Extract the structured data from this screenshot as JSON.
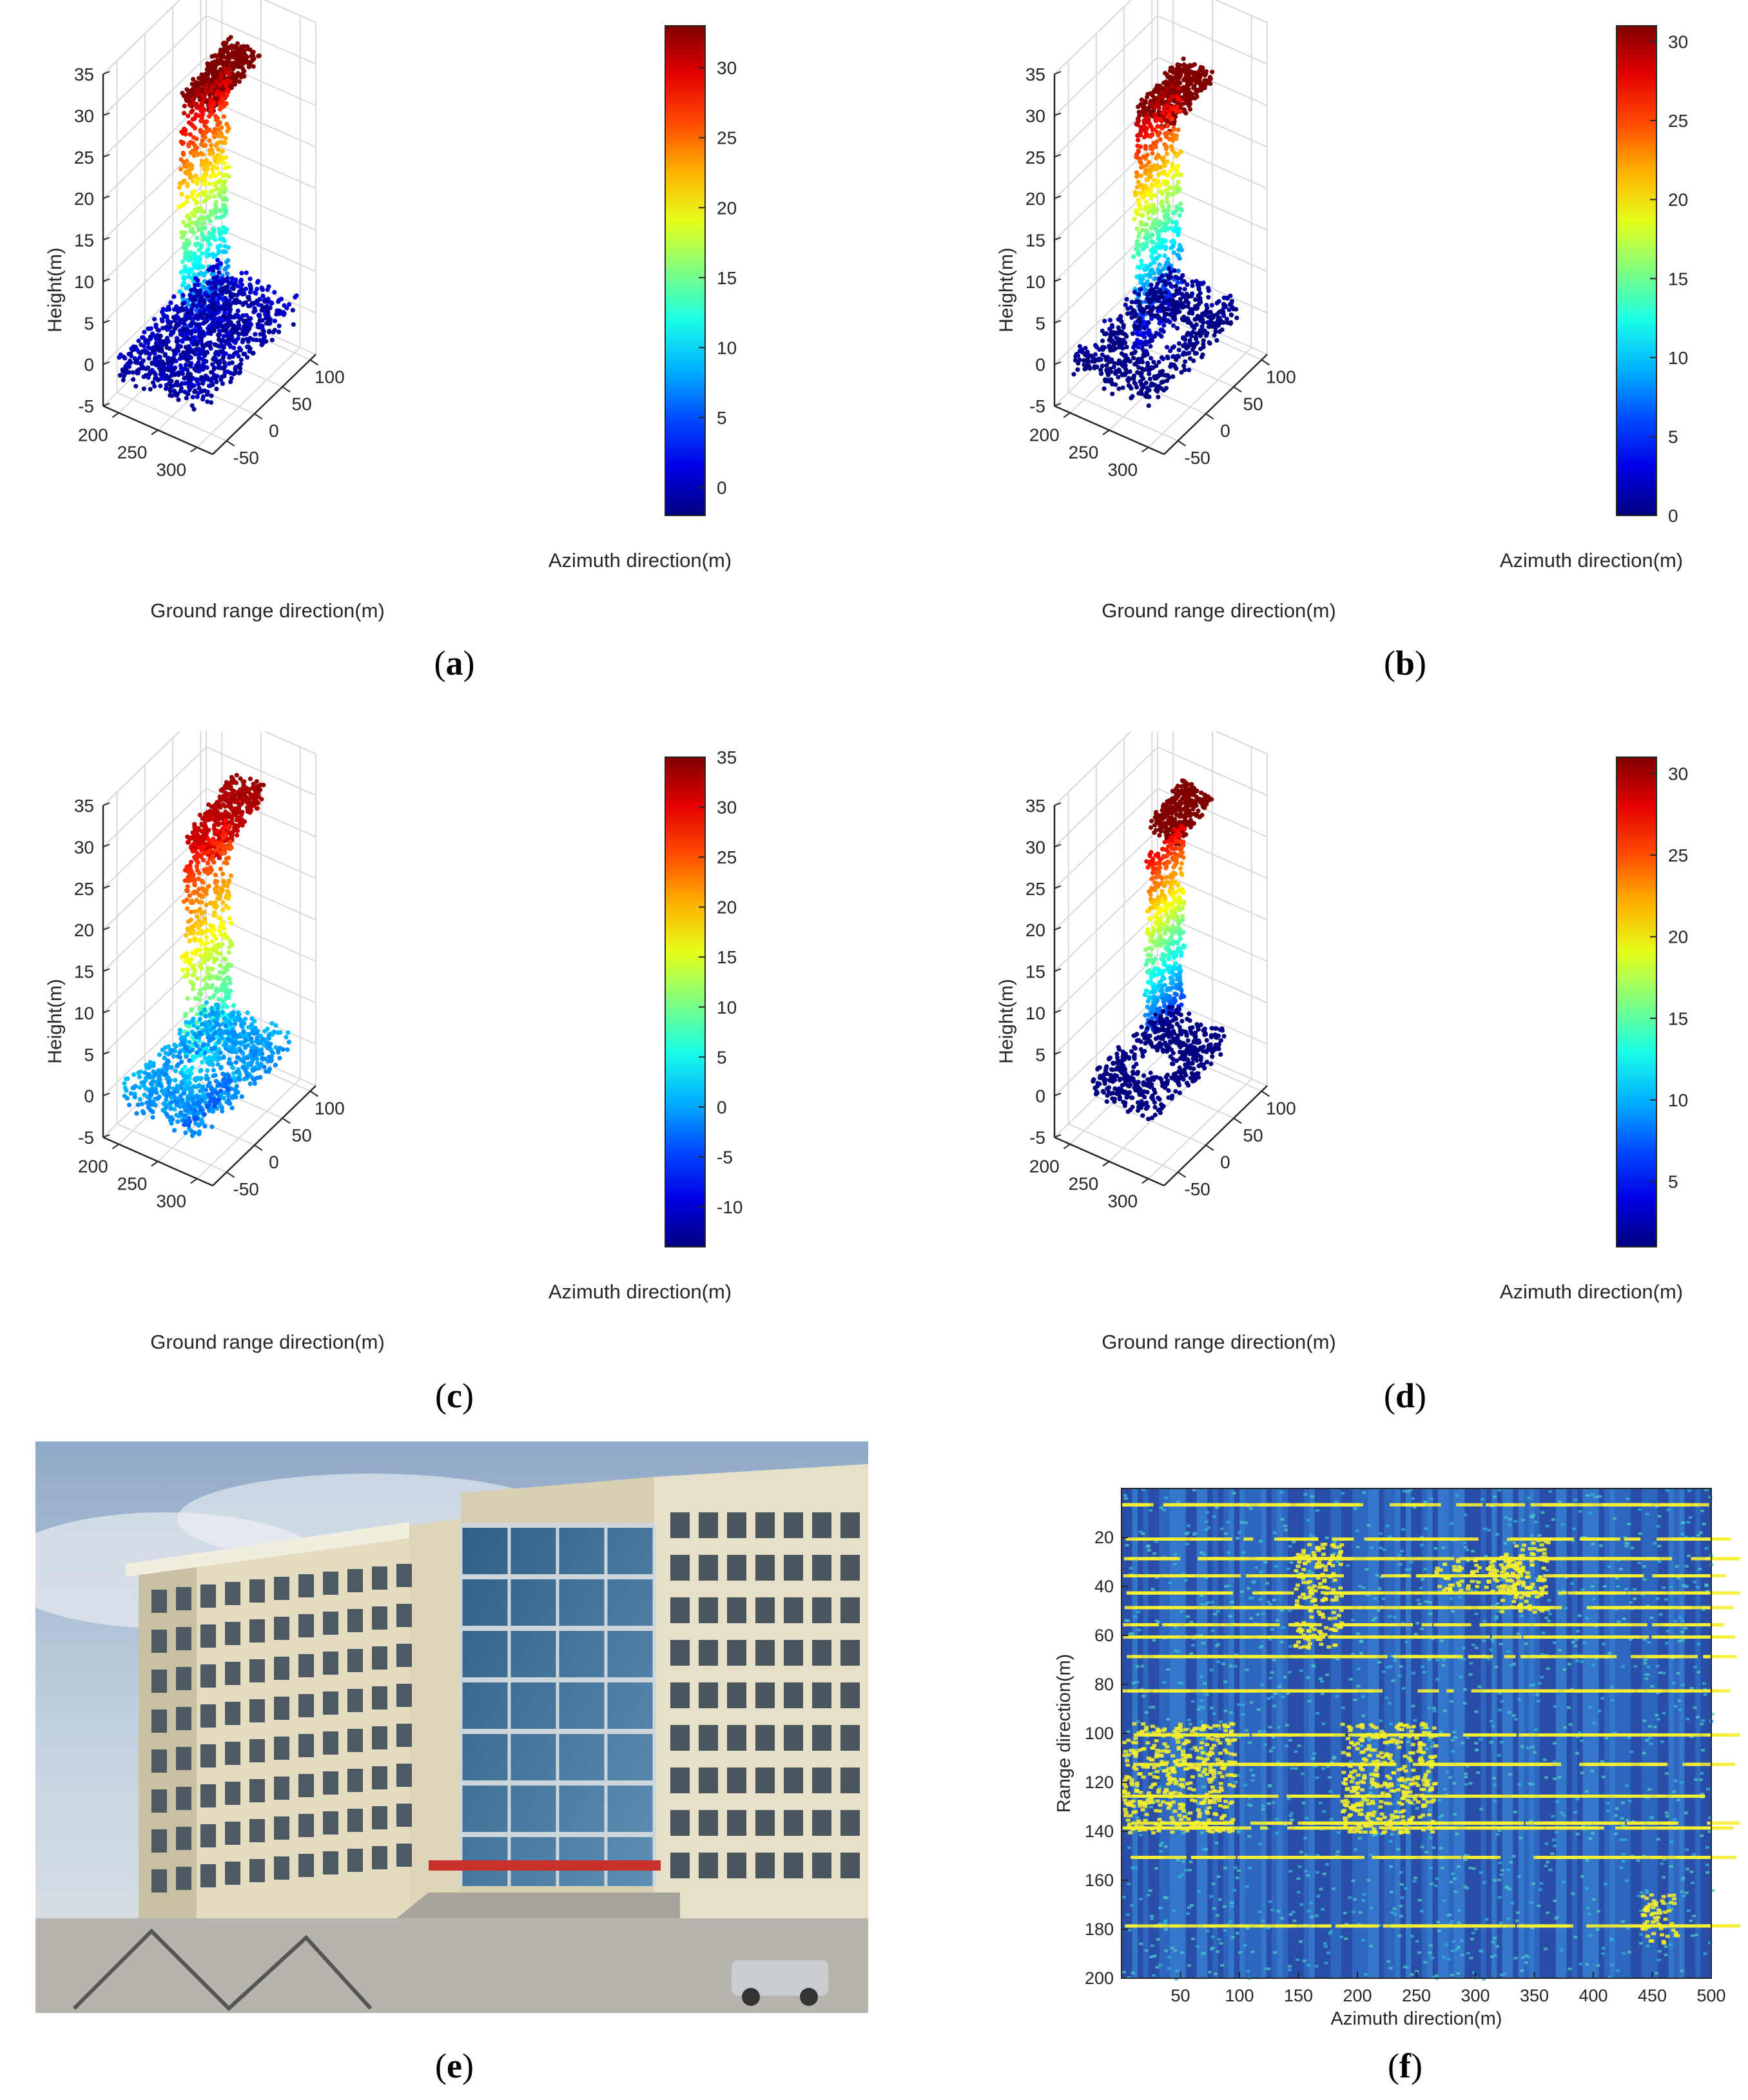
{
  "chart_data": [
    {
      "id": "a",
      "caption_label": "a",
      "type": "scatter3d",
      "zlabel": "Height(m)",
      "xlabel": "Ground range direction(m)",
      "ylabel": "Azimuth direction(m)",
      "zticks": [
        35,
        30,
        25,
        20,
        15,
        10,
        5,
        0,
        -5
      ],
      "xticks": [
        300,
        250,
        200
      ],
      "yticks": [
        -50,
        0,
        50,
        100
      ],
      "zlim": [
        -5,
        35
      ],
      "xlim": [
        180,
        320
      ],
      "ylim": [
        -75,
        110
      ],
      "colorbar": {
        "ticks": [
          30,
          25,
          20,
          15,
          10,
          5,
          0
        ],
        "range": [
          -2,
          33
        ]
      },
      "structures": {
        "wall": {
          "x": 255,
          "y_range": [
            -40,
            45
          ],
          "z_range": [
            1,
            32
          ],
          "count": 700
        },
        "roof": {
          "x_range": [
            255,
            295
          ],
          "y_range": [
            -40,
            45
          ],
          "z": 33,
          "tilt": 0.3,
          "count": 420
        },
        "ground": {
          "x_range": [
            190,
            300
          ],
          "y_range": [
            -70,
            110
          ],
          "z": 0,
          "count": 1000,
          "hole": false
        },
        "color_offset": 0
      }
    },
    {
      "id": "b",
      "caption_label": "b",
      "type": "scatter3d",
      "zlabel": "Height(m)",
      "xlabel": "Ground range direction(m)",
      "ylabel": "Azimuth direction(m)",
      "zticks": [
        35,
        30,
        25,
        20,
        15,
        10,
        5,
        0,
        -5
      ],
      "xticks": [
        300,
        250,
        200
      ],
      "yticks": [
        -50,
        0,
        50,
        100
      ],
      "zlim": [
        -5,
        35
      ],
      "xlim": [
        180,
        320
      ],
      "ylim": [
        -75,
        110
      ],
      "colorbar": {
        "ticks": [
          30,
          25,
          20,
          15,
          10,
          5,
          0
        ],
        "range": [
          0,
          31
        ]
      },
      "structures": {
        "wall": {
          "x": 255,
          "y_range": [
            -35,
            45
          ],
          "z_range": [
            1,
            30
          ],
          "count": 650
        },
        "roof": {
          "x_range": [
            255,
            300
          ],
          "y_range": [
            -35,
            45
          ],
          "z": 31,
          "tilt": 0.2,
          "count": 400
        },
        "ground": {
          "x_range": [
            195,
            295
          ],
          "y_range": [
            -65,
            100
          ],
          "z": 0,
          "count": 800,
          "hole": true
        },
        "color_offset": 0
      }
    },
    {
      "id": "c",
      "caption_label": "c",
      "type": "scatter3d",
      "zlabel": "Height(m)",
      "xlabel": "Ground range direction(m)",
      "ylabel": "Azimuth direction(m)",
      "zticks": [
        35,
        30,
        25,
        20,
        15,
        10,
        5,
        0,
        -5
      ],
      "xticks": [
        300,
        250,
        200
      ],
      "yticks": [
        -50,
        0,
        50,
        100
      ],
      "zlim": [
        -5,
        35
      ],
      "xlim": [
        180,
        320
      ],
      "ylim": [
        -75,
        110
      ],
      "colorbar": {
        "ticks": [
          35,
          30,
          25,
          20,
          15,
          10,
          5,
          0,
          -5,
          -10
        ],
        "range": [
          -14,
          35
        ]
      },
      "structures": {
        "wall": {
          "x": 255,
          "y_range": [
            -35,
            50
          ],
          "z_range": [
            -4,
            29
          ],
          "count": 650
        },
        "roof": {
          "x_range": [
            255,
            300
          ],
          "y_range": [
            -35,
            50
          ],
          "z": 31,
          "tilt": 0.6,
          "count": 400
        },
        "ground": {
          "x_range": [
            195,
            295
          ],
          "y_range": [
            -65,
            100
          ],
          "z": 0,
          "count": 900,
          "hole": true
        },
        "color_offset": 0
      }
    },
    {
      "id": "d",
      "caption_label": "d",
      "type": "scatter3d",
      "zlabel": "Height(m)",
      "xlabel": "Ground range direction(m)",
      "ylabel": "Azimuth direction(m)",
      "zticks": [
        35,
        30,
        25,
        20,
        15,
        10,
        5,
        0,
        -5
      ],
      "xticks": [
        300,
        250,
        200
      ],
      "yticks": [
        -50,
        0,
        50,
        100
      ],
      "zlim": [
        -5,
        35
      ],
      "xlim": [
        180,
        320
      ],
      "ylim": [
        -75,
        110
      ],
      "colorbar": {
        "ticks": [
          30,
          25,
          20,
          15,
          10,
          5
        ],
        "range": [
          1,
          31
        ]
      },
      "structures": {
        "wall": {
          "x": 255,
          "y_range": [
            -15,
            50
          ],
          "z_range": [
            6,
            28
          ],
          "count": 550
        },
        "roof": {
          "x_range": [
            260,
            300
          ],
          "y_range": [
            -20,
            40
          ],
          "z": 32,
          "tilt": 0.5,
          "count": 300
        },
        "ground": {
          "x_range": [
            200,
            280
          ],
          "y_range": [
            -45,
            95
          ],
          "z": 0,
          "count": 700,
          "hole": true
        },
        "color_offset": 0
      }
    },
    {
      "id": "f",
      "caption_label": "f",
      "type": "heatmap",
      "xlabel": "Azimuth direction(m)",
      "ylabel": "Range direction(m)",
      "xticks": [
        50,
        100,
        150,
        200,
        250,
        300,
        350,
        400,
        450,
        500
      ],
      "yticks": [
        20,
        40,
        60,
        80,
        100,
        120,
        140,
        160,
        180,
        200
      ],
      "xlim": [
        0,
        500
      ],
      "ylim": [
        0,
        200
      ],
      "bright_regions": [
        {
          "x": [
            0,
            95
          ],
          "y": [
            95,
            140
          ]
        },
        {
          "x": [
            145,
            185
          ],
          "y": [
            20,
            65
          ]
        },
        {
          "x": [
            185,
            265
          ],
          "y": [
            95,
            140
          ]
        },
        {
          "x": [
            265,
            340
          ],
          "y": [
            28,
            42
          ]
        },
        {
          "x": [
            320,
            360
          ],
          "y": [
            20,
            50
          ]
        },
        {
          "x": [
            440,
            470
          ],
          "y": [
            165,
            185
          ]
        }
      ],
      "bright_rows": [
        6,
        20,
        28,
        35,
        42,
        48,
        55,
        60,
        68,
        82,
        100,
        112,
        125,
        136,
        138,
        150,
        178
      ]
    }
  ],
  "photo": {
    "caption_label": "e"
  },
  "colors": {
    "text": "#262626",
    "grid": "#d9d9d9",
    "axis": "#262626"
  }
}
